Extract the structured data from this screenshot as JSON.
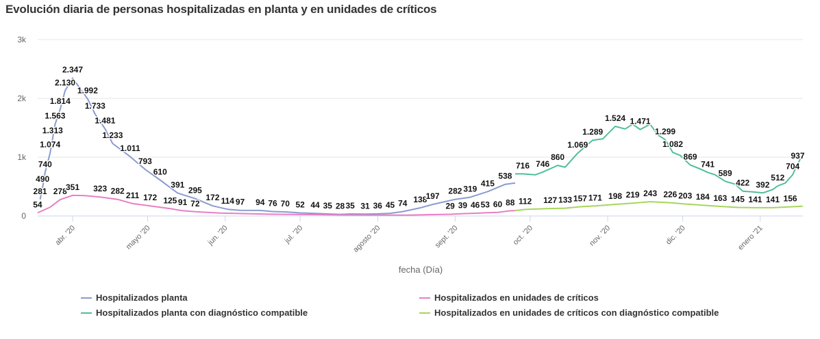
{
  "title": "Evolución diaria de personas hospitalizadas en planta y en unidades de críticos",
  "chart_data": {
    "type": "line",
    "title": "Evolución diaria de personas hospitalizadas en planta y en unidades de críticos",
    "xlabel": "fecha (Día)",
    "ylabel": "",
    "x_units": "days since 2020-03-01",
    "xlim": [
      17,
      323
    ],
    "ylim": [
      0,
      3000
    ],
    "yticks": [
      {
        "v": 0,
        "label": "0"
      },
      {
        "v": 1000,
        "label": "1k"
      },
      {
        "v": 2000,
        "label": "2k"
      },
      {
        "v": 3000,
        "label": "3k"
      }
    ],
    "xticks": [
      {
        "day": 31,
        "label": "abr. '20"
      },
      {
        "day": 61,
        "label": "mayo '20"
      },
      {
        "day": 92,
        "label": "jun. '20"
      },
      {
        "day": 122,
        "label": "jul. '20"
      },
      {
        "day": 153,
        "label": "agosto '20"
      },
      {
        "day": 184,
        "label": "sept. '20"
      },
      {
        "day": 214,
        "label": "oct. '20"
      },
      {
        "day": 245,
        "label": "nov. '20"
      },
      {
        "day": 275,
        "label": "dic. '20"
      },
      {
        "day": 306,
        "label": "enero '21"
      }
    ],
    "grid": true,
    "legend_position": "bottom",
    "series": [
      {
        "name": "Hospitalizados planta",
        "color": "#8a9bd0",
        "points": [
          [
            18,
            281
          ],
          [
            19,
            490
          ],
          [
            20,
            740
          ],
          [
            22,
            1074
          ],
          [
            23,
            1313
          ],
          [
            24,
            1563
          ],
          [
            26,
            1814
          ],
          [
            28,
            2130
          ],
          [
            31,
            2347
          ],
          [
            37,
            1992
          ],
          [
            40,
            1733
          ],
          [
            44,
            1481
          ],
          [
            47,
            1233
          ],
          [
            54,
            1011
          ],
          [
            60,
            793
          ],
          [
            66,
            610
          ],
          [
            73,
            391
          ],
          [
            80,
            295
          ],
          [
            87,
            172
          ],
          [
            93,
            114
          ],
          [
            98,
            97
          ],
          [
            106,
            94
          ],
          [
            111,
            76
          ],
          [
            116,
            70
          ],
          [
            122,
            52
          ],
          [
            128,
            44
          ],
          [
            133,
            35
          ],
          [
            138,
            28
          ],
          [
            142,
            35
          ],
          [
            148,
            31
          ],
          [
            153,
            36
          ],
          [
            158,
            45
          ],
          [
            163,
            74
          ],
          [
            170,
            138
          ],
          [
            175,
            197
          ],
          [
            184,
            282
          ],
          [
            190,
            319
          ],
          [
            197,
            415
          ],
          [
            204,
            538
          ],
          [
            208,
            560
          ]
        ],
        "labels": [
          [
            18,
            "281"
          ],
          [
            19,
            "490"
          ],
          [
            20,
            "740"
          ],
          [
            22,
            "1.074"
          ],
          [
            23,
            "1.313"
          ],
          [
            24,
            "1.563"
          ],
          [
            26,
            "1.814"
          ],
          [
            28,
            "2.130"
          ],
          [
            31,
            "2.347"
          ],
          [
            37,
            "1.992"
          ],
          [
            40,
            "1.733"
          ],
          [
            44,
            "1.481"
          ],
          [
            47,
            "1.233"
          ],
          [
            54,
            "1.011"
          ],
          [
            60,
            "793"
          ],
          [
            66,
            "610"
          ],
          [
            73,
            "391"
          ],
          [
            80,
            "295"
          ],
          [
            87,
            "172"
          ],
          [
            93,
            "114"
          ],
          [
            98,
            "97"
          ],
          [
            106,
            "94"
          ],
          [
            111,
            "76"
          ],
          [
            116,
            "70"
          ],
          [
            122,
            "52"
          ],
          [
            128,
            "44"
          ],
          [
            133,
            "35"
          ],
          [
            138,
            "28"
          ],
          [
            142,
            "35"
          ],
          [
            148,
            "31"
          ],
          [
            153,
            "36"
          ],
          [
            158,
            "45"
          ],
          [
            163,
            "74"
          ],
          [
            170,
            "138"
          ],
          [
            175,
            "197"
          ],
          [
            184,
            "282"
          ],
          [
            190,
            "319"
          ],
          [
            197,
            "415"
          ],
          [
            204,
            "538"
          ]
        ]
      },
      {
        "name": "Hospitalizados en unidades de críticos",
        "color": "#e77fc4",
        "points": [
          [
            17,
            54
          ],
          [
            22,
            150
          ],
          [
            26,
            278
          ],
          [
            31,
            351
          ],
          [
            36,
            345
          ],
          [
            42,
            323
          ],
          [
            49,
            282
          ],
          [
            55,
            211
          ],
          [
            62,
            172
          ],
          [
            70,
            125
          ],
          [
            75,
            91
          ],
          [
            80,
            72
          ],
          [
            90,
            50
          ],
          [
            110,
            30
          ],
          [
            140,
            18
          ],
          [
            165,
            15
          ],
          [
            182,
            29
          ],
          [
            187,
            39
          ],
          [
            192,
            46
          ],
          [
            196,
            53
          ],
          [
            201,
            60
          ],
          [
            206,
            88
          ],
          [
            208,
            90
          ]
        ],
        "labels": [
          [
            17,
            "54"
          ],
          [
            26,
            "278"
          ],
          [
            31,
            "351"
          ],
          [
            42,
            "323"
          ],
          [
            49,
            "282"
          ],
          [
            55,
            "211"
          ],
          [
            62,
            "172"
          ],
          [
            70,
            "125"
          ],
          [
            75,
            "91"
          ],
          [
            80,
            "72"
          ],
          [
            182,
            "29"
          ],
          [
            187,
            "39"
          ],
          [
            192,
            "46"
          ],
          [
            196,
            "53"
          ],
          [
            201,
            "60"
          ],
          [
            206,
            "88"
          ]
        ]
      },
      {
        "name": "Hospitalizados planta con diagnóstico compatible",
        "color": "#4fbf97",
        "points": [
          [
            208,
            716
          ],
          [
            211,
            716
          ],
          [
            216,
            700
          ],
          [
            219,
            746
          ],
          [
            225,
            860
          ],
          [
            228,
            830
          ],
          [
            233,
            1069
          ],
          [
            239,
            1289
          ],
          [
            243,
            1310
          ],
          [
            248,
            1524
          ],
          [
            252,
            1480
          ],
          [
            255,
            1560
          ],
          [
            258,
            1471
          ],
          [
            262,
            1560
          ],
          [
            265,
            1380
          ],
          [
            268,
            1299
          ],
          [
            271,
            1082
          ],
          [
            274,
            1030
          ],
          [
            278,
            869
          ],
          [
            282,
            800
          ],
          [
            285,
            741
          ],
          [
            288,
            700
          ],
          [
            292,
            589
          ],
          [
            296,
            540
          ],
          [
            299,
            422
          ],
          [
            303,
            410
          ],
          [
            307,
            392
          ],
          [
            311,
            450
          ],
          [
            313,
            512
          ],
          [
            316,
            560
          ],
          [
            319,
            704
          ],
          [
            320,
            800
          ],
          [
            323,
            1050
          ]
        ],
        "labels": [
          [
            211,
            "716"
          ],
          [
            219,
            "746"
          ],
          [
            225,
            "860"
          ],
          [
            233,
            "1.069"
          ],
          [
            239,
            "1.289"
          ],
          [
            248,
            "1.524"
          ],
          [
            258,
            "1.471"
          ],
          [
            268,
            "1.299"
          ],
          [
            271,
            "1.082"
          ],
          [
            278,
            "869"
          ],
          [
            285,
            "741"
          ],
          [
            292,
            "589"
          ],
          [
            299,
            "422"
          ],
          [
            307,
            "392"
          ],
          [
            313,
            "512"
          ],
          [
            319,
            "704"
          ],
          [
            321,
            "937"
          ]
        ]
      },
      {
        "name": "Hospitalizados en unidades de críticos con diagnóstico compatible",
        "color": "#a6d65c",
        "points": [
          [
            208,
            92
          ],
          [
            212,
            112
          ],
          [
            222,
            127
          ],
          [
            228,
            133
          ],
          [
            234,
            157
          ],
          [
            240,
            171
          ],
          [
            248,
            198
          ],
          [
            255,
            219
          ],
          [
            262,
            243
          ],
          [
            270,
            226
          ],
          [
            276,
            203
          ],
          [
            283,
            184
          ],
          [
            290,
            163
          ],
          [
            297,
            145
          ],
          [
            304,
            141
          ],
          [
            311,
            141
          ],
          [
            318,
            156
          ],
          [
            323,
            165
          ]
        ],
        "labels": [
          [
            212,
            "112"
          ],
          [
            222,
            "127"
          ],
          [
            228,
            "133"
          ],
          [
            234,
            "157"
          ],
          [
            240,
            "171"
          ],
          [
            248,
            "198"
          ],
          [
            255,
            "219"
          ],
          [
            262,
            "243"
          ],
          [
            270,
            "226"
          ],
          [
            276,
            "203"
          ],
          [
            283,
            "184"
          ],
          [
            290,
            "163"
          ],
          [
            297,
            "145"
          ],
          [
            304,
            "141"
          ],
          [
            311,
            "141"
          ],
          [
            318,
            "156"
          ]
        ]
      }
    ]
  }
}
